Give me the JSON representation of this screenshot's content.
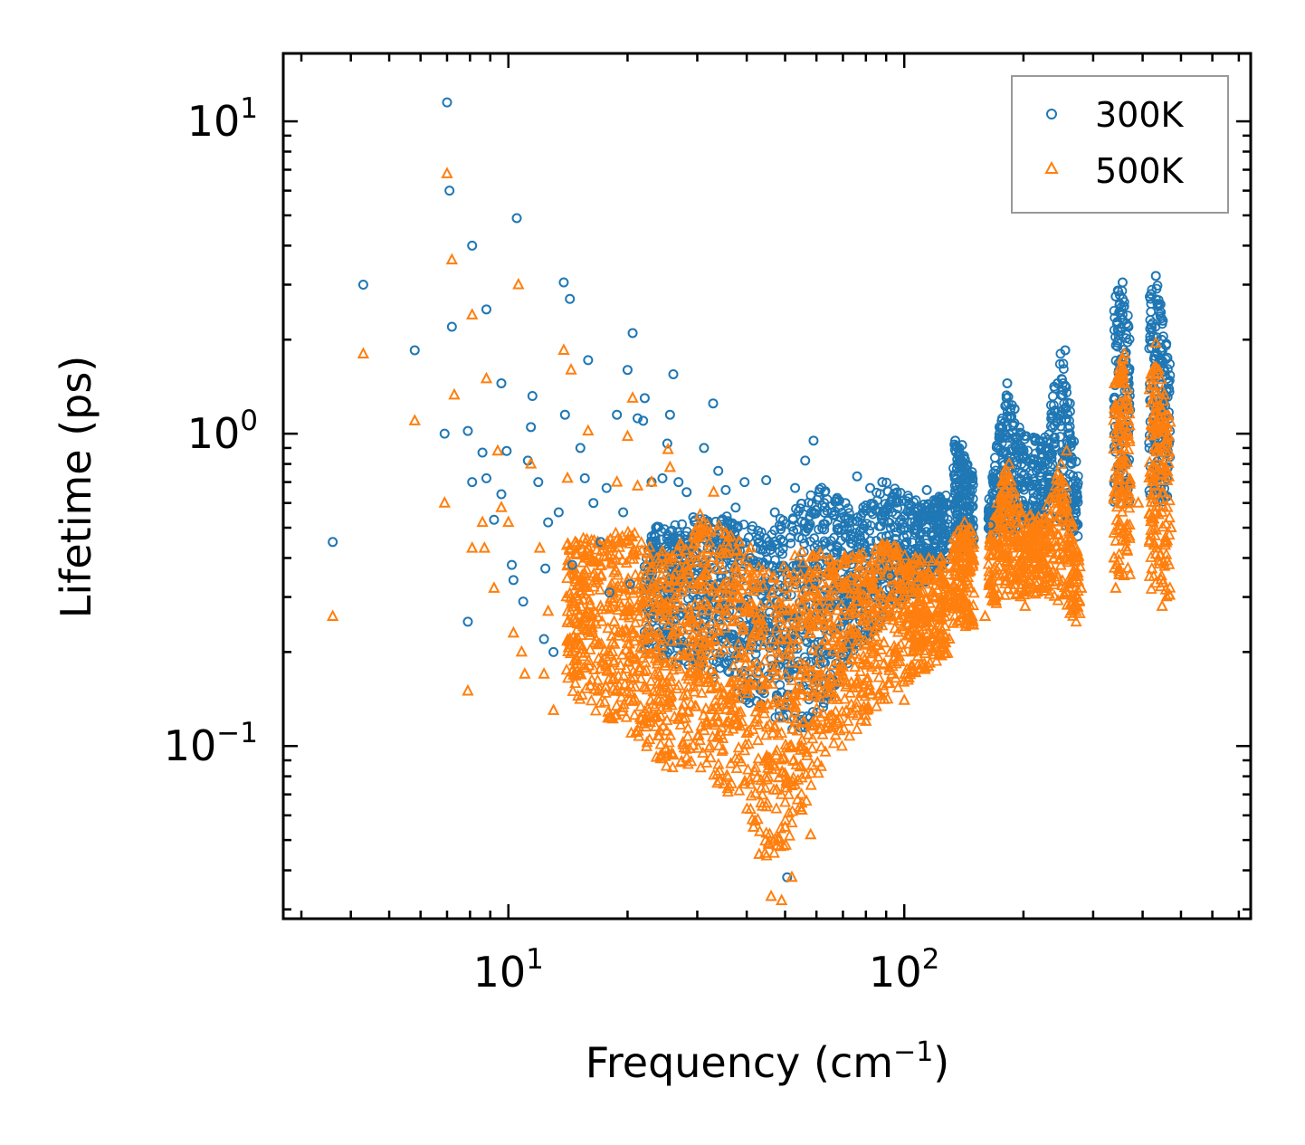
{
  "chart_data": {
    "type": "scatter",
    "title": "",
    "xlabel": "Frequency (cm",
    "xlabel_sup": "−1",
    "xlabel_close": ")",
    "ylabel": "Lifetime (ps)",
    "xscale": "log",
    "yscale": "log",
    "xlim": [
      2.7,
      750
    ],
    "ylim": [
      0.028,
      16.5
    ],
    "x_ticks": [
      {
        "value": 10,
        "base": "10",
        "exp": "1"
      },
      {
        "value": 100,
        "base": "10",
        "exp": "2"
      }
    ],
    "y_ticks": [
      {
        "value": 10,
        "base": "10",
        "exp": "1"
      },
      {
        "value": 1,
        "base": "10",
        "exp": "0"
      },
      {
        "value": 0.1,
        "base": "10",
        "exp": "−1"
      }
    ],
    "legend_position": "top-right",
    "series": [
      {
        "name": "300K",
        "marker": "circle",
        "color": "#1f77b4",
        "points": [
          [
            3.6,
            0.45
          ],
          [
            4.3,
            3.0
          ],
          [
            5.8,
            1.85
          ],
          [
            6.9,
            1.0
          ],
          [
            7.0,
            11.5
          ],
          [
            7.1,
            6.0
          ],
          [
            7.2,
            2.2
          ],
          [
            7.9,
            1.02
          ],
          [
            7.9,
            0.25
          ],
          [
            8.1,
            4.0
          ],
          [
            8.1,
            0.7
          ],
          [
            8.6,
            0.87
          ],
          [
            8.8,
            0.72
          ],
          [
            8.8,
            2.5
          ],
          [
            9.2,
            0.53
          ],
          [
            9.6,
            0.64
          ],
          [
            9.6,
            1.45
          ],
          [
            9.9,
            0.88
          ],
          [
            10.2,
            0.38
          ],
          [
            10.3,
            0.34
          ],
          [
            10.5,
            4.9
          ],
          [
            10.9,
            0.29
          ],
          [
            11.2,
            0.82
          ],
          [
            11.4,
            1.05
          ],
          [
            11.5,
            1.32
          ],
          [
            11.9,
            0.7
          ],
          [
            12.3,
            0.22
          ],
          [
            12.4,
            0.37
          ],
          [
            12.6,
            0.52
          ],
          [
            13.0,
            0.2
          ],
          [
            13.4,
            0.56
          ],
          [
            13.8,
            3.05
          ],
          [
            13.9,
            1.15
          ],
          [
            14.3,
            2.7
          ],
          [
            14.5,
            0.38
          ],
          [
            15.2,
            0.9
          ],
          [
            15.6,
            0.72
          ],
          [
            15.9,
            1.72
          ],
          [
            16.4,
            0.6
          ],
          [
            17.1,
            0.45
          ],
          [
            17.7,
            0.67
          ],
          [
            18.0,
            0.31
          ],
          [
            18.8,
            1.15
          ],
          [
            19.5,
            0.56
          ],
          [
            20.0,
            1.6
          ],
          [
            20.3,
            0.33
          ],
          [
            20.6,
            2.1
          ],
          [
            21.2,
            1.12
          ],
          [
            21.9,
            1.1
          ],
          [
            22.1,
            1.3
          ],
          [
            23.0,
            0.7
          ],
          [
            23.6,
            0.5
          ],
          [
            24.5,
            0.72
          ],
          [
            25.2,
            0.93
          ],
          [
            25.6,
            1.15
          ],
          [
            26.1,
            1.55
          ],
          [
            26.9,
            0.7
          ],
          [
            28.2,
            0.65
          ],
          [
            29.3,
            0.54
          ],
          [
            31.2,
            0.9
          ],
          [
            32.9,
            1.25
          ],
          [
            33.9,
            0.76
          ],
          [
            35.4,
            0.66
          ],
          [
            37.5,
            0.58
          ],
          [
            39.5,
            0.7
          ],
          [
            40.8,
            0.4
          ],
          [
            43.1,
            0.45
          ],
          [
            44.8,
            0.71
          ],
          [
            47.1,
            0.56
          ],
          [
            49.5,
            0.45
          ],
          [
            50.6,
            0.038
          ],
          [
            53.0,
            0.67
          ],
          [
            56.2,
            0.82
          ],
          [
            59.0,
            0.95
          ],
          [
            62.0,
            0.2
          ],
          [
            66.5,
            0.55
          ],
          [
            71.0,
            0.6
          ],
          [
            76.0,
            0.73
          ],
          [
            82.0,
            0.67
          ],
          [
            88.0,
            0.7
          ],
          [
            92.0,
            0.35
          ],
          [
            100.0,
            0.5
          ],
          [
            108.0,
            0.58
          ],
          [
            114.0,
            0.66
          ],
          [
            121.0,
            0.55
          ],
          [
            128.0,
            0.6
          ],
          [
            134.5,
            0.95
          ],
          [
            140.0,
            0.92
          ],
          [
            146.0,
            0.62
          ],
          [
            165.0,
            0.51
          ],
          [
            174.0,
            1.05
          ],
          [
            182.0,
            1.45
          ],
          [
            190.0,
            1.2
          ],
          [
            200.0,
            0.85
          ],
          [
            212.0,
            0.8
          ],
          [
            228.0,
            0.89
          ],
          [
            244.0,
            1.45
          ],
          [
            255.0,
            1.85
          ],
          [
            262.0,
            1.25
          ],
          [
            272.0,
            0.61
          ],
          [
            342.0,
            2.75
          ],
          [
            356.0,
            3.05
          ],
          [
            364.0,
            2.25
          ],
          [
            420.0,
            2.8
          ],
          [
            432.0,
            3.2
          ],
          [
            450.0,
            2.3
          ],
          [
            462.0,
            1.75
          ]
        ]
      },
      {
        "name": "500K",
        "marker": "triangle",
        "color": "#ff7f0e",
        "points": [
          [
            3.6,
            0.26
          ],
          [
            4.3,
            1.8
          ],
          [
            5.8,
            1.1
          ],
          [
            6.9,
            0.6
          ],
          [
            7.0,
            6.8
          ],
          [
            7.2,
            3.6
          ],
          [
            7.3,
            1.33
          ],
          [
            7.9,
            0.15
          ],
          [
            8.1,
            0.43
          ],
          [
            8.1,
            2.4
          ],
          [
            8.6,
            0.52
          ],
          [
            8.7,
            0.43
          ],
          [
            8.8,
            1.5
          ],
          [
            9.2,
            0.32
          ],
          [
            9.4,
            0.88
          ],
          [
            9.6,
            0.58
          ],
          [
            10.0,
            0.52
          ],
          [
            10.3,
            0.23
          ],
          [
            10.6,
            3.0
          ],
          [
            10.8,
            0.2
          ],
          [
            11.0,
            0.17
          ],
          [
            11.4,
            0.8
          ],
          [
            12.0,
            0.43
          ],
          [
            12.3,
            0.17
          ],
          [
            12.6,
            0.27
          ],
          [
            13.0,
            0.13
          ],
          [
            13.8,
            1.85
          ],
          [
            14.1,
            0.72
          ],
          [
            14.4,
            1.6
          ],
          [
            15.0,
            0.22
          ],
          [
            15.4,
            0.35
          ],
          [
            15.9,
            1.02
          ],
          [
            16.4,
            0.39
          ],
          [
            17.1,
            0.28
          ],
          [
            17.8,
            0.45
          ],
          [
            18.5,
            0.25
          ],
          [
            18.8,
            0.7
          ],
          [
            19.6,
            0.32
          ],
          [
            20.0,
            0.98
          ],
          [
            20.6,
            1.3
          ],
          [
            21.2,
            0.68
          ],
          [
            21.6,
            0.35
          ],
          [
            22.6,
            0.29
          ],
          [
            23.0,
            0.7
          ],
          [
            24.5,
            0.42
          ],
          [
            25.3,
            0.89
          ],
          [
            25.6,
            0.78
          ],
          [
            26.7,
            0.42
          ],
          [
            28.2,
            0.38
          ],
          [
            29.3,
            0.33
          ],
          [
            30.5,
            0.55
          ],
          [
            31.7,
            0.49
          ],
          [
            33.0,
            0.65
          ],
          [
            34.8,
            0.32
          ],
          [
            37.0,
            0.25
          ],
          [
            38.8,
            0.2
          ],
          [
            40.0,
            0.11
          ],
          [
            41.6,
            0.055
          ],
          [
            43.0,
            0.045
          ],
          [
            45.0,
            0.078
          ],
          [
            46.1,
            0.033
          ],
          [
            47.7,
            0.048
          ],
          [
            49.0,
            0.032
          ],
          [
            50.0,
            0.055
          ],
          [
            52.0,
            0.038
          ],
          [
            55.0,
            0.1
          ],
          [
            58.0,
            0.052
          ],
          [
            61.0,
            0.28
          ],
          [
            64.0,
            0.21
          ],
          [
            68.0,
            0.25
          ],
          [
            72.0,
            0.32
          ],
          [
            76.0,
            0.16
          ],
          [
            80.0,
            0.12
          ],
          [
            85.0,
            0.26
          ],
          [
            90.0,
            0.4
          ],
          [
            95.0,
            0.2
          ],
          [
            100.0,
            0.14
          ],
          [
            105.0,
            0.2
          ],
          [
            110.0,
            0.26
          ],
          [
            115.0,
            0.18
          ],
          [
            121.0,
            0.26
          ],
          [
            126.0,
            0.37
          ],
          [
            130.0,
            0.22
          ],
          [
            136.0,
            0.4
          ],
          [
            142.0,
            0.52
          ],
          [
            149.0,
            0.25
          ],
          [
            160.0,
            0.26
          ],
          [
            170.0,
            0.3
          ],
          [
            178.0,
            0.6
          ],
          [
            184.0,
            0.8
          ],
          [
            192.0,
            0.45
          ],
          [
            202.0,
            0.28
          ],
          [
            212.0,
            0.32
          ],
          [
            225.0,
            0.42
          ],
          [
            240.0,
            0.63
          ],
          [
            250.0,
            0.58
          ],
          [
            257.0,
            0.88
          ],
          [
            265.0,
            0.4
          ],
          [
            272.0,
            0.3
          ],
          [
            280.0,
            0.32
          ],
          [
            342.0,
            0.32
          ],
          [
            350.0,
            1.25
          ],
          [
            360.0,
            1.8
          ],
          [
            368.0,
            1.1
          ],
          [
            390.0,
            0.6
          ],
          [
            420.0,
            1.55
          ],
          [
            432.0,
            1.95
          ],
          [
            448.0,
            0.28
          ],
          [
            462.0,
            1.05
          ],
          [
            472.0,
            0.5
          ]
        ]
      }
    ]
  }
}
